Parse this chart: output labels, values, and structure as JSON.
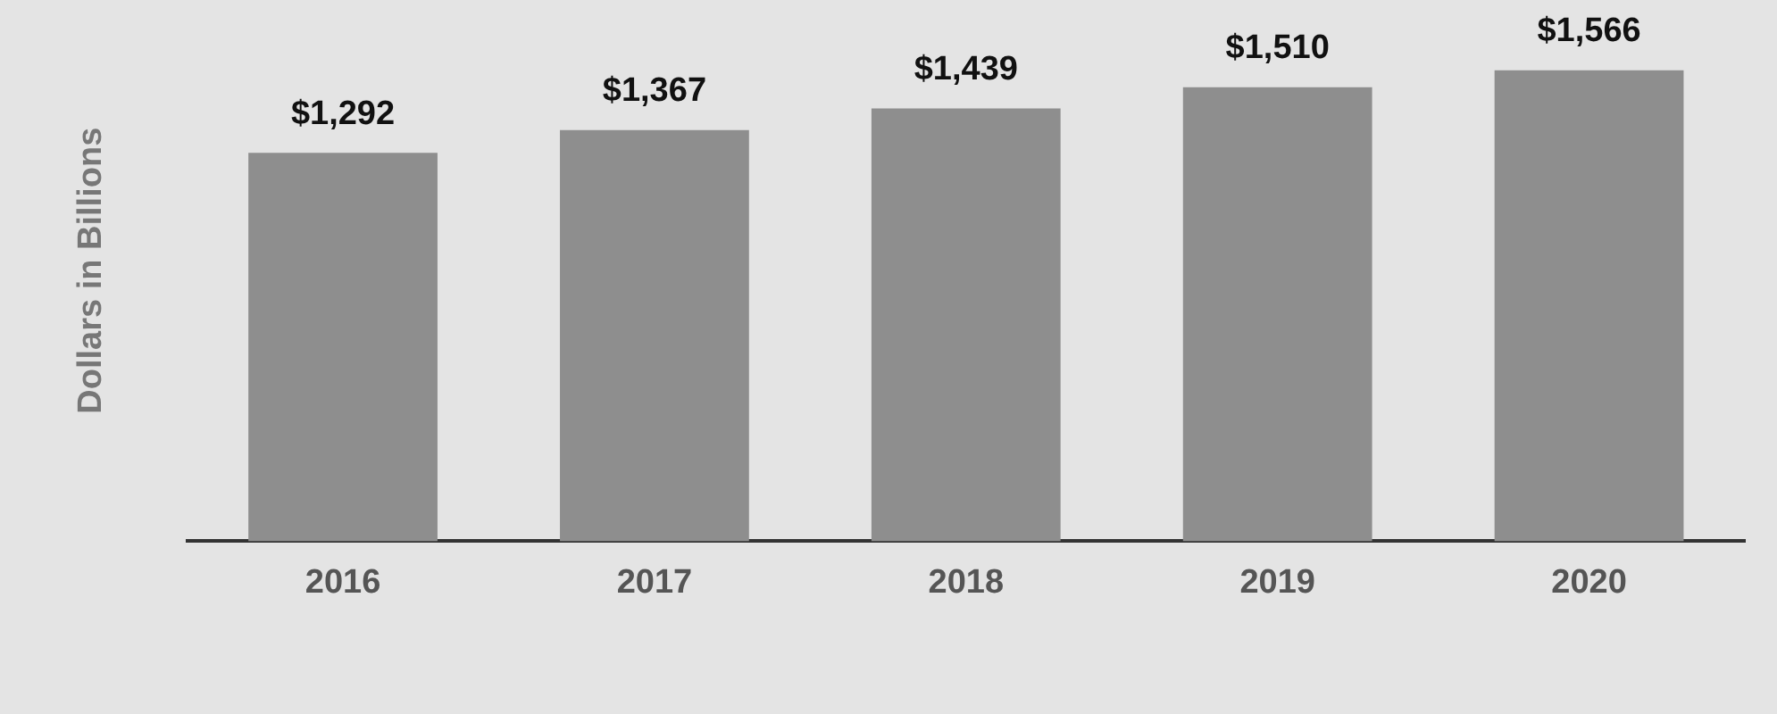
{
  "chart_data": {
    "type": "bar",
    "ylabel": "Dollars in Billions",
    "categories": [
      "2016",
      "2017",
      "2018",
      "2019",
      "2020"
    ],
    "values": [
      1292,
      1367,
      1439,
      1510,
      1566
    ],
    "value_labels": [
      "$1,292",
      "$1,367",
      "$1,439",
      "$1,510",
      "$1,566"
    ],
    "color": "#8e8e8e",
    "grid": false,
    "legend": false
  }
}
